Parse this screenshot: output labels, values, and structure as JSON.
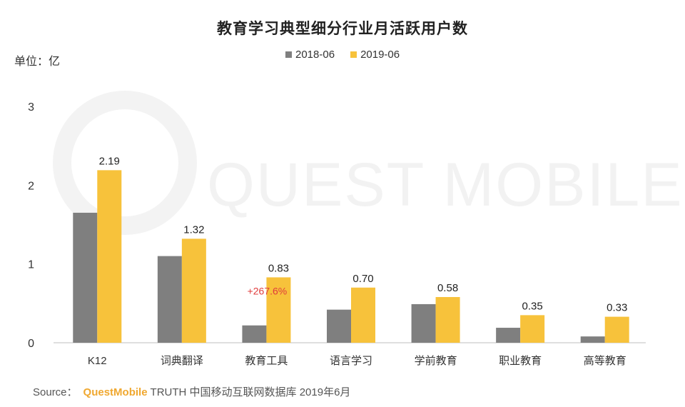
{
  "chart_data": {
    "type": "bar",
    "title": "教育学习典型细分行业月活跃用户数",
    "unit_label": "单位：亿",
    "categories": [
      "K12",
      "词典翻译",
      "教育工具",
      "语言学习",
      "学前教育",
      "职业教育",
      "高等教育"
    ],
    "series": [
      {
        "name": "2018-06",
        "color": "#7f7f7f",
        "values": [
          1.65,
          1.1,
          0.22,
          0.42,
          0.49,
          0.19,
          0.08
        ]
      },
      {
        "name": "2019-06",
        "color": "#f7c23b",
        "values": [
          2.19,
          1.32,
          0.83,
          0.7,
          0.58,
          0.35,
          0.33
        ],
        "labels": [
          "2.19",
          "1.32",
          "0.83",
          "0.70",
          "0.58",
          "0.35",
          "0.33"
        ]
      }
    ],
    "y_ticks": [
      "0",
      "1",
      "2",
      "3"
    ],
    "ylim": [
      0,
      3
    ],
    "annotations": [
      {
        "category": "教育工具",
        "text": "+267.6%",
        "color": "#e03c3c"
      }
    ],
    "watermark": "QUEST MOBILE"
  },
  "source": {
    "prefix": "Source：",
    "brand": "QuestMobile",
    "rest": "TRUTH 中国移动互联网数据库 2019年6月"
  }
}
